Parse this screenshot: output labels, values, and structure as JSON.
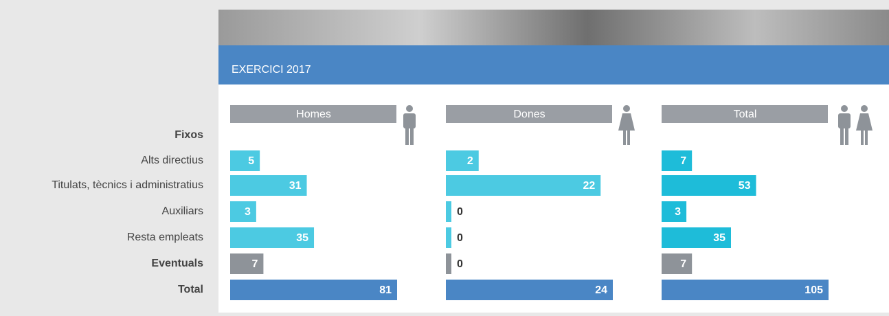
{
  "section_title": "EXERCICI 2017",
  "rows": [
    "Fixos",
    "Alts directius",
    "Titulats, tècnics i administratius",
    "Auxiliars",
    "Resta empleats",
    "Eventuals",
    "Total"
  ],
  "row_bold": [
    true,
    false,
    false,
    false,
    false,
    true,
    true
  ],
  "chart_data": [
    {
      "type": "bar",
      "title": "Homes",
      "values": [
        null,
        5,
        31,
        3,
        35,
        7,
        81
      ],
      "xlim": [
        0,
        81
      ],
      "colors": [
        null,
        "#4ccae2",
        "#4ccae2",
        "#4ccae2",
        "#4ccae2",
        "#8e9399",
        "#4a86c5"
      ]
    },
    {
      "type": "bar",
      "title": "Dones",
      "values": [
        null,
        2,
        22,
        0,
        0,
        0,
        24
      ],
      "xlim": [
        0,
        24
      ],
      "colors": [
        null,
        "#4ccae2",
        "#4ccae2",
        "#4ccae2",
        "#4ccae2",
        "#8e9399",
        "#4a86c5"
      ]
    },
    {
      "type": "bar",
      "title": "Total",
      "values": [
        null,
        7,
        53,
        3,
        35,
        7,
        105
      ],
      "xlim": [
        0,
        105
      ],
      "colors": [
        null,
        "#1ebcd9",
        "#1ebcd9",
        "#1ebcd9",
        "#1ebcd9",
        "#8e9399",
        "#4a86c5"
      ]
    }
  ]
}
